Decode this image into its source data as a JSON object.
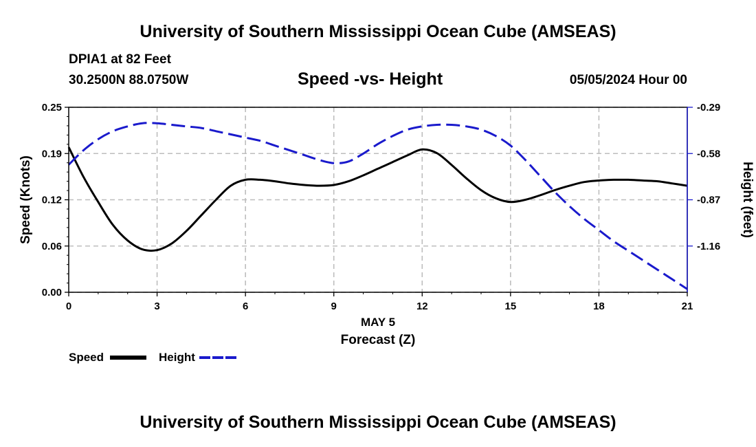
{
  "title_top": "University of Southern Mississippi Ocean Cube (AMSEAS)",
  "title_bottom": "University of Southern Mississippi Ocean Cube (AMSEAS)",
  "station": "DPIA1 at 82 Feet",
  "coords": "30.2500N  88.0750W",
  "subtitle": "Speed -vs- Height",
  "datetime": "05/05/2024 Hour 00",
  "legend": {
    "speed": "Speed",
    "height": "Height"
  },
  "colors": {
    "speed": "#000000",
    "height": "#1a1acc",
    "grid": "#bdbdbd"
  },
  "chart_data": {
    "type": "line",
    "xlabel_date": "MAY 5",
    "xlabel": "Forecast (Z)",
    "ylabel": "Speed (Knots)",
    "ylabel_right": "Height (feet)",
    "xlim": [
      0,
      21
    ],
    "ylim": [
      0.0,
      0.25
    ],
    "ylim_right": [
      -1.45,
      -0.29
    ],
    "x_ticks": [
      0,
      3,
      6,
      9,
      12,
      15,
      18,
      21
    ],
    "x_tick_labels": [
      "0",
      "3",
      "6",
      "9",
      "12",
      "15",
      "18",
      "21"
    ],
    "y_ticks": [
      0.0,
      0.0625,
      0.125,
      0.1875,
      0.25
    ],
    "y_tick_labels": [
      "0.00",
      "0.06",
      "0.12",
      "0.19",
      "0.25"
    ],
    "y_right_ticks": [
      -0.29,
      -0.58,
      -0.87,
      -1.16
    ],
    "y_right_tick_labels": [
      "-0.29",
      "-0.58",
      "-0.87",
      "-1.16"
    ],
    "series": [
      {
        "name": "Speed",
        "axis": "left",
        "style": "solid",
        "x": [
          0,
          0.5,
          1,
          1.5,
          2,
          2.5,
          3,
          3.5,
          4,
          4.5,
          5,
          5.5,
          6,
          6.5,
          7,
          7.5,
          8,
          8.5,
          9,
          9.5,
          10,
          10.5,
          11,
          11.5,
          12,
          12.5,
          13,
          13.5,
          14,
          14.5,
          15,
          15.5,
          16,
          16.5,
          17,
          17.5,
          18,
          18.5,
          19,
          19.5,
          20,
          20.5,
          21
        ],
        "values": [
          0.196,
          0.156,
          0.122,
          0.091,
          0.07,
          0.058,
          0.057,
          0.066,
          0.083,
          0.104,
          0.125,
          0.144,
          0.152,
          0.152,
          0.15,
          0.147,
          0.145,
          0.144,
          0.145,
          0.15,
          0.158,
          0.167,
          0.176,
          0.185,
          0.193,
          0.188,
          0.172,
          0.154,
          0.138,
          0.127,
          0.122,
          0.125,
          0.131,
          0.138,
          0.144,
          0.149,
          0.151,
          0.152,
          0.152,
          0.151,
          0.15,
          0.147,
          0.144
        ]
      },
      {
        "name": "Height",
        "axis": "right",
        "style": "dashed",
        "x": [
          0,
          0.5,
          1,
          1.5,
          2,
          2.5,
          3,
          3.5,
          4,
          4.5,
          5,
          5.5,
          6,
          6.5,
          7,
          7.5,
          8,
          8.5,
          9,
          9.5,
          10,
          10.5,
          11,
          11.5,
          12,
          12.5,
          13,
          13.5,
          14,
          14.5,
          15,
          15.5,
          16,
          16.5,
          17,
          17.5,
          18,
          18.5,
          19,
          19.5,
          20,
          20.5,
          21
        ],
        "values": [
          -0.65,
          -0.56,
          -0.49,
          -0.44,
          -0.41,
          -0.39,
          -0.39,
          -0.4,
          -0.41,
          -0.42,
          -0.44,
          -0.46,
          -0.48,
          -0.5,
          -0.53,
          -0.56,
          -0.59,
          -0.62,
          -0.64,
          -0.63,
          -0.58,
          -0.52,
          -0.47,
          -0.43,
          -0.41,
          -0.4,
          -0.4,
          -0.41,
          -0.43,
          -0.47,
          -0.53,
          -0.62,
          -0.72,
          -0.82,
          -0.91,
          -0.99,
          -1.06,
          -1.13,
          -1.19,
          -1.25,
          -1.31,
          -1.37,
          -1.43
        ]
      }
    ]
  }
}
